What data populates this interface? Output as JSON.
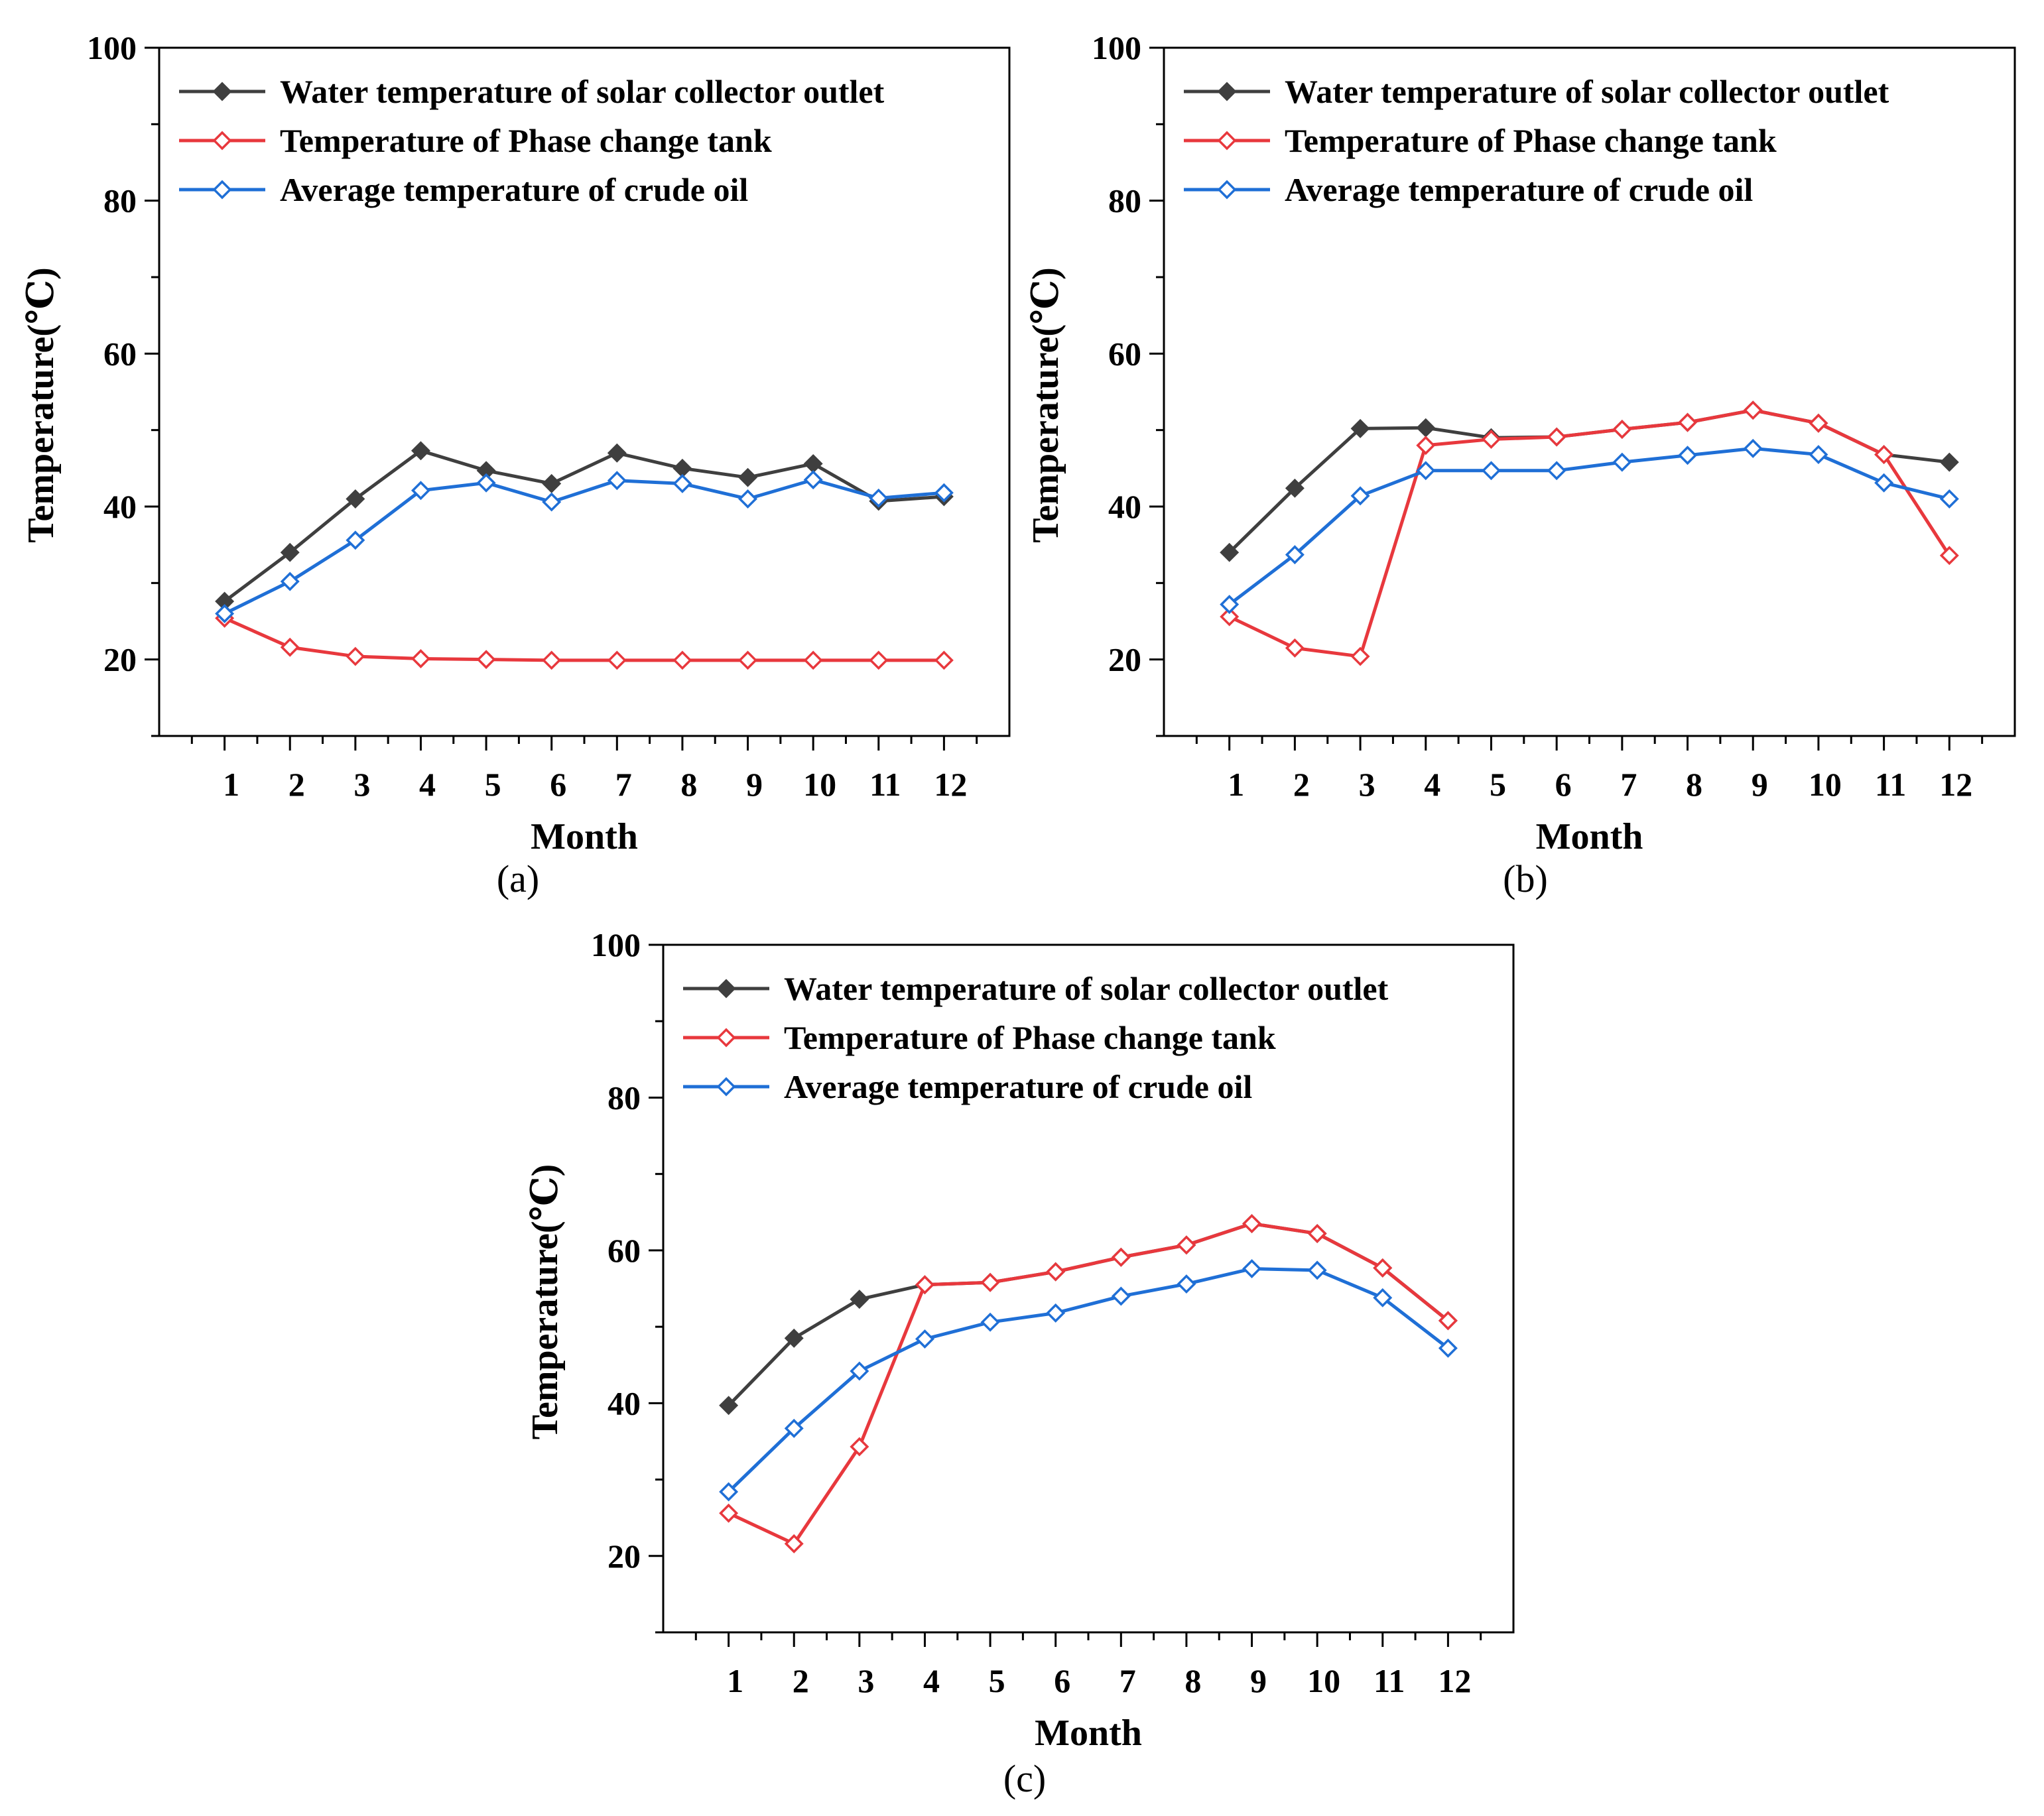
{
  "chart_data": [
    {
      "type": "line",
      "panel_label": "(a)",
      "xlabel": "Month",
      "ylabel": "Temperature(℃)",
      "categories": [
        1,
        2,
        3,
        4,
        5,
        6,
        7,
        8,
        9,
        10,
        11,
        12
      ],
      "x_tick_labels": [
        "1",
        "2",
        "3",
        "4",
        "5",
        "6",
        "7",
        "8",
        "9",
        "10",
        "11",
        "12"
      ],
      "ylim": [
        10,
        100
      ],
      "y_ticks": [
        20,
        40,
        60,
        80,
        100
      ],
      "y_tick_labels": [
        "20",
        "40",
        "60",
        "80",
        "100"
      ],
      "legend_position": "top-left",
      "series": [
        {
          "name": "Water temperature of solar collector outlet",
          "color": "#3f3f3f",
          "marker": "diamond-filled",
          "values": [
            27.6,
            34.0,
            41.0,
            47.3,
            44.7,
            43.0,
            47.0,
            45.0,
            43.8,
            45.6,
            40.7,
            41.3
          ]
        },
        {
          "name": "Temperature of Phase change tank",
          "color": "#e8383d",
          "marker": "diamond-open",
          "values": [
            25.4,
            21.6,
            20.4,
            20.1,
            20.0,
            19.9,
            19.9,
            19.9,
            19.9,
            19.9,
            19.9,
            19.9
          ]
        },
        {
          "name": "Average temperature of crude oil",
          "color": "#1f6fd6",
          "marker": "diamond-open",
          "values": [
            26.0,
            30.2,
            35.6,
            42.1,
            43.1,
            40.6,
            43.4,
            43.0,
            41.0,
            43.5,
            41.1,
            41.8
          ]
        }
      ]
    },
    {
      "type": "line",
      "panel_label": "(b)",
      "xlabel": "Month",
      "ylabel": "Temperature(℃)",
      "categories": [
        1,
        2,
        3,
        4,
        5,
        6,
        7,
        8,
        9,
        10,
        11,
        12
      ],
      "x_tick_labels": [
        "1",
        "2",
        "3",
        "4",
        "5",
        "6",
        "7",
        "8",
        "9",
        "10",
        "11",
        "12"
      ],
      "ylim": [
        10,
        100
      ],
      "y_ticks": [
        20,
        40,
        60,
        80,
        100
      ],
      "y_tick_labels": [
        "20",
        "40",
        "60",
        "80",
        "100"
      ],
      "legend_position": "top-left",
      "series": [
        {
          "name": "Water temperature of solar collector outlet",
          "color": "#3f3f3f",
          "marker": "diamond-filled",
          "values": [
            34.0,
            42.4,
            50.2,
            50.3,
            49.0,
            49.1,
            50.1,
            51.0,
            52.6,
            50.9,
            46.8,
            45.8
          ]
        },
        {
          "name": "Temperature of Phase change tank",
          "color": "#e8383d",
          "marker": "diamond-open",
          "values": [
            25.6,
            21.5,
            20.4,
            48.0,
            48.8,
            49.1,
            50.1,
            51.0,
            52.6,
            50.9,
            46.8,
            33.6
          ]
        },
        {
          "name": "Average temperature of crude oil",
          "color": "#1f6fd6",
          "marker": "diamond-open",
          "values": [
            27.2,
            33.7,
            41.4,
            44.7,
            44.7,
            44.7,
            45.8,
            46.7,
            47.6,
            46.8,
            43.1,
            41.0
          ]
        }
      ]
    },
    {
      "type": "line",
      "panel_label": "(c)",
      "xlabel": "Month",
      "ylabel": "Temperature(℃)",
      "categories": [
        1,
        2,
        3,
        4,
        5,
        6,
        7,
        8,
        9,
        10,
        11,
        12
      ],
      "x_tick_labels": [
        "1",
        "2",
        "3",
        "4",
        "5",
        "6",
        "7",
        "8",
        "9",
        "10",
        "11",
        "12"
      ],
      "ylim": [
        10,
        100
      ],
      "y_ticks": [
        20,
        40,
        60,
        80,
        100
      ],
      "y_tick_labels": [
        "20",
        "40",
        "60",
        "80",
        "100"
      ],
      "legend_position": "top-left",
      "series": [
        {
          "name": "Water temperature of solar collector outlet",
          "color": "#3f3f3f",
          "marker": "diamond-filled",
          "values": [
            39.7,
            48.5,
            53.6,
            55.5,
            55.8,
            57.2,
            59.1,
            60.7,
            63.5,
            62.2,
            57.7,
            50.8
          ]
        },
        {
          "name": "Temperature of Phase change tank",
          "color": "#e8383d",
          "marker": "diamond-open",
          "values": [
            25.6,
            21.6,
            34.3,
            55.5,
            55.8,
            57.2,
            59.1,
            60.7,
            63.5,
            62.2,
            57.7,
            50.8
          ]
        },
        {
          "name": "Average temperature of crude oil",
          "color": "#1f6fd6",
          "marker": "diamond-open",
          "values": [
            28.4,
            36.7,
            44.2,
            48.4,
            50.6,
            51.8,
            54.0,
            55.6,
            57.6,
            57.4,
            53.8,
            47.2
          ]
        }
      ]
    }
  ]
}
